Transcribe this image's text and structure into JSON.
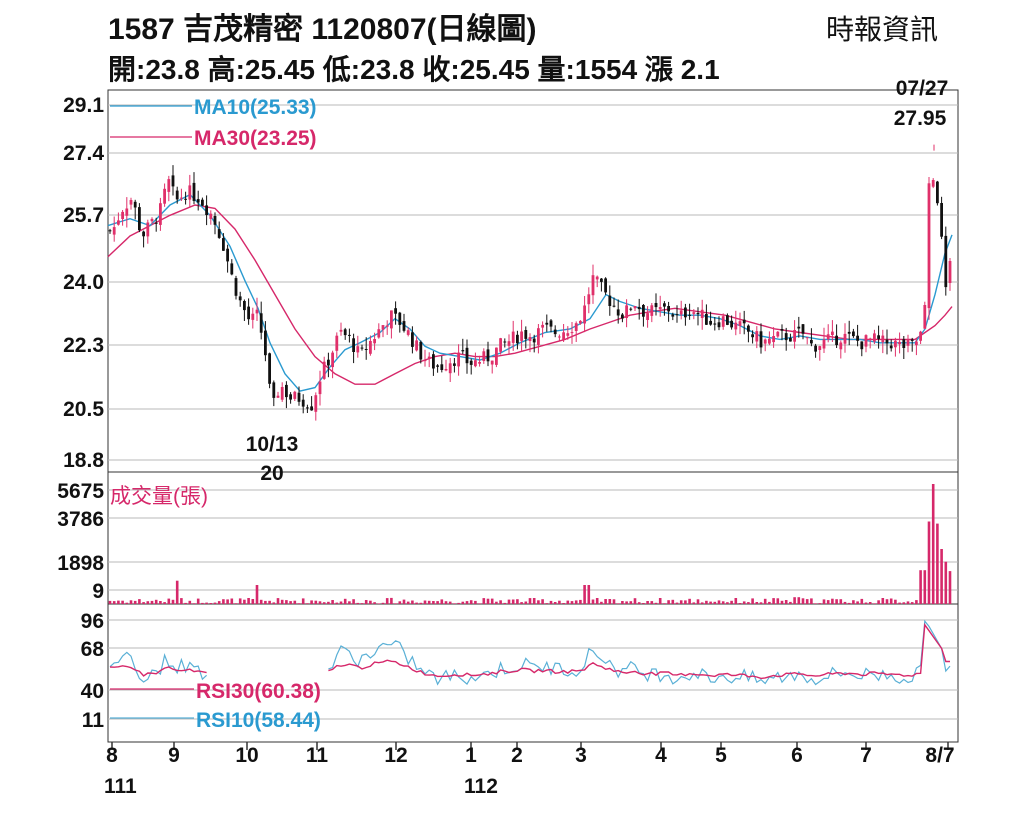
{
  "header": {
    "title": "1587  吉茂精密 1120807(日線圖)",
    "source": "時報資訊",
    "summary": "開:23.8 高:25.45 低:23.8 收:25.45 量:1554 漲 2.1"
  },
  "colors": {
    "up": "#e0306a",
    "down": "#111111",
    "ma10": "#2a9ad0",
    "ma30": "#d6286a",
    "volume": "#d6286a",
    "rsi30": "#d6286a",
    "rsi10": "#5ab0d6",
    "grid": "#b8b8b8"
  },
  "chart_data": [
    {
      "type": "candlestick",
      "panel": "price",
      "y_ticks": [
        "29.1",
        "27.4",
        "25.7",
        "24.0",
        "22.3",
        "20.5",
        "18.8"
      ],
      "ylim": [
        18.8,
        29.1
      ],
      "grid": true,
      "series": [
        {
          "name": "MA10(25.33)",
          "label": "MA10(25.33)"
        },
        {
          "name": "MA30(23.25)",
          "label": "MA30(23.25)"
        }
      ],
      "annotations": [
        {
          "date": "07/27",
          "value": "27.95"
        },
        {
          "date": "10/13",
          "value": "20"
        }
      ],
      "high_low_points": [
        {
          "date": "2022-10-13",
          "low": 20.0
        },
        {
          "date": "2023-07-27",
          "high": 27.95
        }
      ],
      "last_candle": {
        "open": 23.8,
        "high": 25.45,
        "low": 23.8,
        "close": 25.45
      }
    },
    {
      "type": "bar",
      "panel": "volume",
      "title": "成交量(張)",
      "y_ticks": [
        "5675",
        "3786",
        "1898",
        "9"
      ],
      "ylim": [
        9,
        5675
      ],
      "peak_volume_near": "2023-07-27",
      "last_volume": 1554
    },
    {
      "type": "line",
      "panel": "rsi",
      "y_ticks": [
        "96",
        "68",
        "40",
        "11"
      ],
      "ylim": [
        11,
        96
      ],
      "series": [
        {
          "name": "RSI30(60.38)",
          "label": "RSI30(60.38)",
          "last": 60.38
        },
        {
          "name": "RSI10(58.44)",
          "label": "RSI10(58.44)",
          "last": 58.44
        }
      ]
    }
  ],
  "x_axis": {
    "months": [
      "8",
      "9",
      "10",
      "11",
      "12",
      "1",
      "2",
      "3",
      "4",
      "5",
      "6",
      "7",
      "8/7"
    ],
    "years": [
      "111",
      "112"
    ]
  }
}
